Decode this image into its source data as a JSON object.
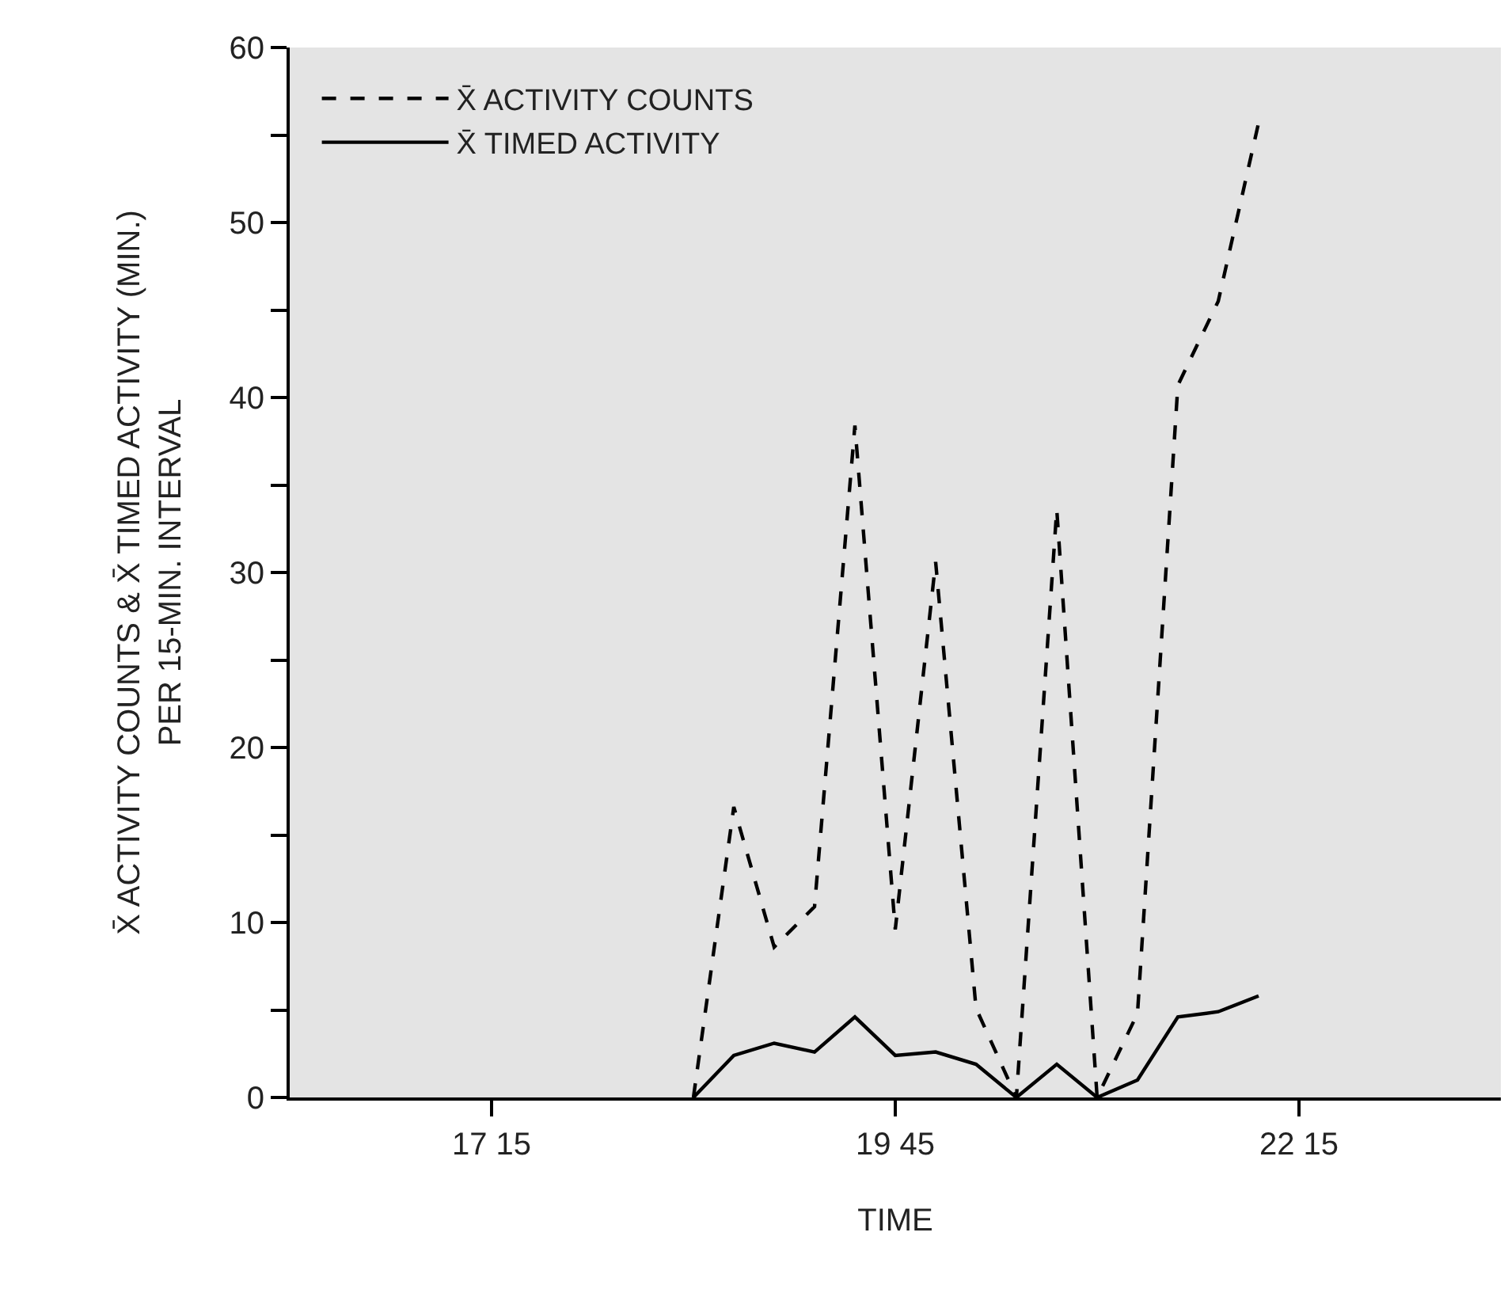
{
  "chart_data": {
    "type": "line",
    "xlabel": "TIME",
    "ylabel": "X̄ ACTIVITY COUNTS & X̄ TIMED ACTIVITY (MIN.)\nPER 15-MIN. INTERVAL",
    "categories": [
      null,
      null,
      null,
      null,
      null,
      "17 15",
      null,
      null,
      null,
      null,
      null,
      null,
      null,
      null,
      null,
      "19 45",
      null,
      null,
      null,
      null,
      null,
      null,
      null,
      null,
      null,
      "22 15",
      null,
      null,
      null,
      null,
      null
    ],
    "series": [
      {
        "name": "X̄ ACTIVITY COUNTS",
        "color": "#000000",
        "line_style": "dashed",
        "values": [
          null,
          null,
          null,
          null,
          null,
          null,
          null,
          null,
          null,
          null,
          0,
          16.6,
          8.6,
          10.9,
          38.4,
          9.6,
          30.6,
          5.1,
          0,
          33.6,
          0,
          4.8,
          40.7,
          45.5,
          55.7,
          null,
          null,
          null,
          null,
          null,
          null
        ]
      },
      {
        "name": "X̄ TIMED ACTIVITY",
        "color": "#000000",
        "line_style": "solid",
        "values": [
          null,
          null,
          null,
          null,
          null,
          null,
          null,
          null,
          null,
          null,
          0,
          2.4,
          3.1,
          2.6,
          4.6,
          2.4,
          2.6,
          1.9,
          0,
          1.9,
          0,
          1.0,
          4.6,
          4.9,
          5.8,
          null,
          null,
          null,
          null,
          null,
          null
        ]
      }
    ],
    "ylim": [
      0,
      60
    ],
    "yticks": [
      0,
      {
        "value": 5,
        "label": null
      },
      10,
      {
        "value": 15,
        "label": null
      },
      20,
      {
        "value": 25,
        "label": null
      },
      30,
      {
        "value": 35,
        "label": null
      },
      40,
      {
        "value": 45,
        "label": null
      },
      50,
      {
        "value": 55,
        "label": null
      },
      60
    ],
    "grid": false,
    "legend": "top left",
    "marker": "none"
  }
}
